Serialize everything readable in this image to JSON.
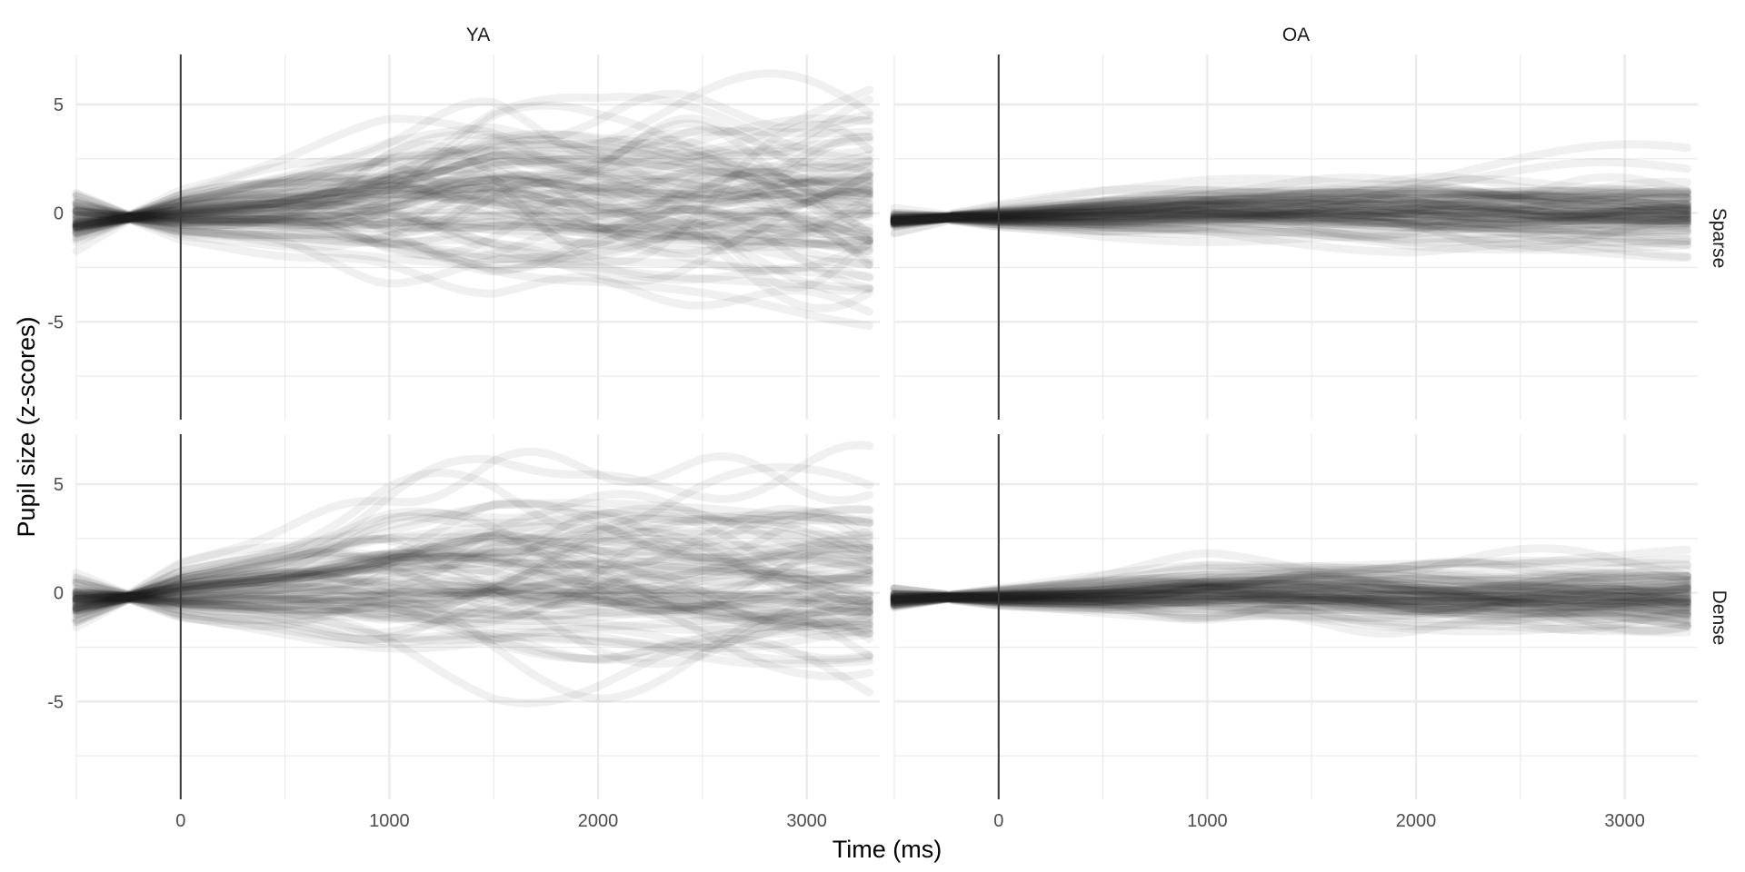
{
  "chart_data": {
    "type": "line",
    "xlabel": "Time (ms)",
    "ylabel": "Pupil size (z-scores)",
    "x_ticks": [
      0,
      1000,
      2000,
      3000
    ],
    "y_ticks": [
      5,
      0,
      -5
    ],
    "y_tick_labels": [
      "5",
      "0",
      "-5"
    ],
    "x_tick_labels": [
      "0",
      "1000",
      "2000",
      "3000"
    ],
    "xlim": [
      -500,
      3350
    ],
    "ylim": [
      -9.5,
      7.3
    ],
    "grid": true,
    "vline_x": 0,
    "line_color": "#1a1a1a",
    "grid_color": "#ebebeb",
    "columns": [
      "YA",
      "OA"
    ],
    "rows": [
      "Sparse",
      "Dense"
    ],
    "panels": [
      {
        "col": "YA",
        "row": "Sparse",
        "n_traces": 80,
        "x_range": [
          -500,
          3330
        ],
        "converge": {
          "x": -250,
          "y": -0.2
        },
        "mean_series": {
          "x": [
            -500,
            -250,
            0,
            500,
            1000,
            1500,
            2000,
            2500,
            3000,
            3330
          ],
          "y": [
            -0.3,
            -0.2,
            -0.15,
            0.1,
            0.4,
            0.5,
            0.3,
            0.2,
            0.1,
            0.0
          ]
        },
        "band_sd": {
          "x": [
            -500,
            -250,
            0,
            500,
            1000,
            1500,
            2000,
            2500,
            3000,
            3330
          ],
          "y": [
            0.5,
            0.05,
            0.6,
            1.1,
            1.7,
            2.1,
            2.0,
            2.2,
            2.4,
            2.5
          ]
        }
      },
      {
        "col": "OA",
        "row": "Sparse",
        "n_traces": 80,
        "x_range": [
          -500,
          3330
        ],
        "converge": {
          "x": -250,
          "y": -0.2
        },
        "mean_series": {
          "x": [
            -500,
            -250,
            0,
            500,
            1000,
            1500,
            2000,
            2500,
            3000,
            3330
          ],
          "y": [
            -0.3,
            -0.2,
            -0.2,
            -0.1,
            0.1,
            0.1,
            0.0,
            0.0,
            -0.05,
            -0.1
          ]
        },
        "band_sd": {
          "x": [
            -500,
            -250,
            0,
            500,
            1000,
            1500,
            2000,
            2500,
            3000,
            3330
          ],
          "y": [
            0.2,
            0.05,
            0.2,
            0.4,
            0.5,
            0.6,
            0.7,
            0.7,
            0.7,
            0.7
          ]
        }
      },
      {
        "col": "YA",
        "row": "Dense",
        "n_traces": 80,
        "x_range": [
          -500,
          3330
        ],
        "converge": {
          "x": -250,
          "y": -0.2
        },
        "mean_series": {
          "x": [
            -500,
            -250,
            0,
            500,
            1000,
            1500,
            2000,
            2500,
            3000,
            3330
          ],
          "y": [
            -0.4,
            -0.2,
            -0.1,
            0.1,
            0.4,
            0.5,
            0.4,
            0.3,
            0.2,
            0.0
          ]
        },
        "band_sd": {
          "x": [
            -500,
            -250,
            0,
            500,
            1000,
            1500,
            2000,
            2500,
            3000,
            3330
          ],
          "y": [
            0.5,
            0.05,
            0.6,
            1.1,
            1.6,
            2.0,
            2.1,
            2.1,
            2.0,
            2.0
          ]
        }
      },
      {
        "col": "OA",
        "row": "Dense",
        "n_traces": 80,
        "x_range": [
          -500,
          3330
        ],
        "converge": {
          "x": -250,
          "y": -0.2
        },
        "mean_series": {
          "x": [
            -500,
            -250,
            0,
            500,
            1000,
            1500,
            2000,
            2500,
            3000,
            3330
          ],
          "y": [
            -0.3,
            -0.2,
            -0.2,
            -0.1,
            0.1,
            0.1,
            0.0,
            -0.05,
            -0.1,
            -0.15
          ]
        },
        "band_sd": {
          "x": [
            -500,
            -250,
            0,
            500,
            1000,
            1500,
            2000,
            2500,
            3000,
            3330
          ],
          "y": [
            0.2,
            0.05,
            0.2,
            0.4,
            0.6,
            0.7,
            0.7,
            0.7,
            0.7,
            0.8
          ]
        }
      }
    ]
  }
}
